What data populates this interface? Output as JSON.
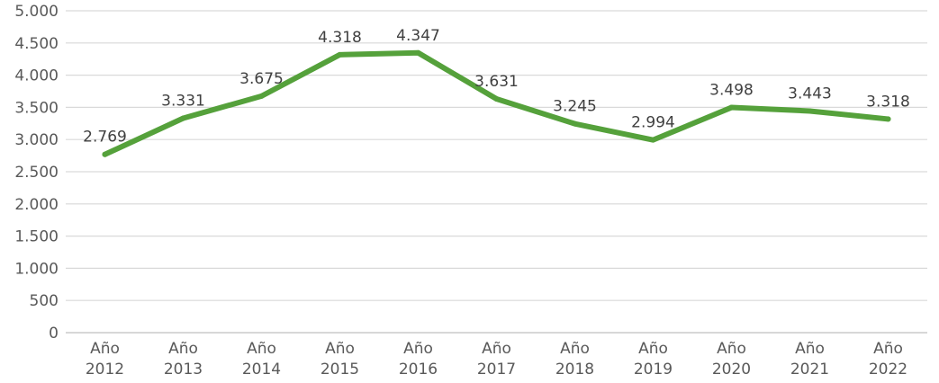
{
  "chart_data": {
    "type": "line",
    "title": "",
    "xlabel": "",
    "ylabel": "",
    "categories": [
      [
        "Año",
        "2012"
      ],
      [
        "Año",
        "2013"
      ],
      [
        "Año",
        "2014"
      ],
      [
        "Año",
        "2015"
      ],
      [
        "Año",
        "2016"
      ],
      [
        "Año",
        "2017"
      ],
      [
        "Año",
        "2018"
      ],
      [
        "Año",
        "2019"
      ],
      [
        "Año",
        "2020"
      ],
      [
        "Año",
        "2021"
      ],
      [
        "Año",
        "2022"
      ]
    ],
    "series": [
      {
        "values": [
          2769,
          3331,
          3675,
          4318,
          4347,
          3631,
          3245,
          2994,
          3498,
          3443,
          3318
        ],
        "data_labels": [
          "2.769",
          "3.331",
          "3.675",
          "4.318",
          "4.347",
          "3.631",
          "3.245",
          "2.994",
          "3.498",
          "3.443",
          "3.318"
        ],
        "color": "#55a13b"
      }
    ],
    "ylim": [
      0,
      5000
    ],
    "yticks": [
      0,
      500,
      1000,
      1500,
      2000,
      2500,
      3000,
      3500,
      4000,
      4500,
      5000
    ],
    "ytick_labels": [
      "0",
      "500",
      "1.000",
      "1.500",
      "2.000",
      "2.500",
      "3.000",
      "3.500",
      "4.000",
      "4.500",
      "5.000"
    ],
    "grid": true,
    "legend": "none"
  }
}
